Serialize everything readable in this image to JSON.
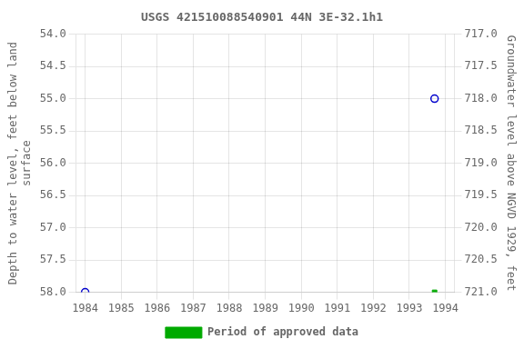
{
  "chart_data": {
    "type": "scatter",
    "title": "USGS 421510088540901 44N 3E-32.1h1",
    "ylabel": "Depth to water level, feet below land\nsurface",
    "y2label": "Groundwater level above NGVD 1929, feet",
    "xlim": [
      1983.75,
      1994.25
    ],
    "xticks": [
      1984,
      1985,
      1986,
      1987,
      1988,
      1989,
      1990,
      1991,
      1992,
      1993,
      1994
    ],
    "ylim": [
      58.0,
      54.0
    ],
    "yticks": [
      {
        "value": 54,
        "label": "54.0"
      },
      54.5,
      {
        "value": 55,
        "label": "55.0"
      },
      55.5,
      {
        "value": 56,
        "label": "56.0"
      },
      56.5,
      {
        "value": 57,
        "label": "57.0"
      },
      57.5,
      {
        "value": 58,
        "label": "58.0"
      }
    ],
    "y2lim": [
      721.0,
      717.0
    ],
    "y2ticks": [
      {
        "value": 721,
        "label": "721.0"
      },
      720.5,
      {
        "value": 720,
        "label": "720.0"
      },
      719.5,
      {
        "value": 719,
        "label": "719.0"
      },
      718.5,
      {
        "value": 718,
        "label": "718.0"
      },
      717.5,
      {
        "value": 717,
        "label": "717.0"
      }
    ],
    "grid": true,
    "legend": "bottom",
    "series": [
      {
        "x": [
          1984.0,
          1993.7
        ],
        "values": [
          58.0,
          55.0
        ],
        "color": "#0000cc",
        "marker": "circle_open"
      },
      {
        "name": "Period of approved data",
        "x": [
          1993.7
        ],
        "values": [
          58.0
        ],
        "color": "#00aa00",
        "marker": "square"
      }
    ]
  }
}
